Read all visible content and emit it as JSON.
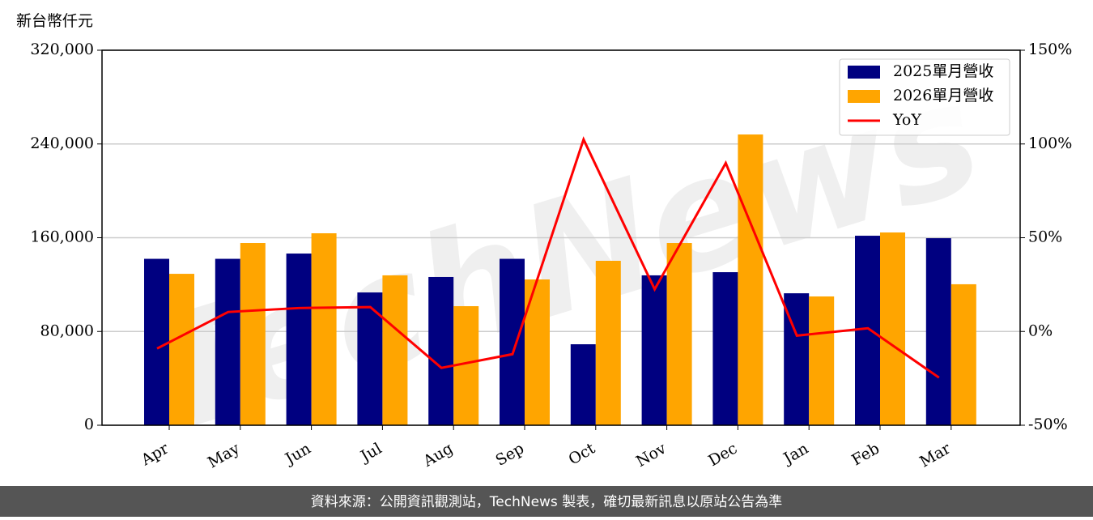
{
  "chart_data": {
    "type": "bar_line",
    "unit_label": "新台幣仟元",
    "watermark": "TechNews",
    "footer": "資料來源：公開資訊觀測站，TechNews 製表，確切最新訊息以原站公告為準",
    "categories": [
      "Apr",
      "May",
      "Jun",
      "Jul",
      "Aug",
      "Sep",
      "Oct",
      "Nov",
      "Dec",
      "Jan",
      "Feb",
      "Mar"
    ],
    "series": [
      {
        "name": "2025單月營收",
        "color": "#000080",
        "type": "bar",
        "values": [
          142000,
          142000,
          146500,
          113300,
          126500,
          142000,
          69100,
          127900,
          130600,
          112600,
          161700,
          159600
        ]
      },
      {
        "name": "2026單月營收",
        "color": "#ffa500",
        "type": "bar",
        "values": [
          129200,
          155500,
          163800,
          127900,
          101600,
          124400,
          140300,
          155500,
          248100,
          109900,
          164500,
          120300
        ]
      },
      {
        "name": "YoY",
        "color": "#ff0000",
        "type": "line",
        "axis": "y2",
        "values": [
          -9.1,
          10.4,
          12.5,
          13.0,
          -19.4,
          -12.1,
          102.4,
          22.5,
          89.8,
          -2.2,
          1.7,
          -24.6
        ]
      }
    ],
    "ylim": [
      0,
      320000
    ],
    "yticks": [
      0,
      {
        "value": 80000,
        "label": "80,000"
      },
      {
        "value": 160000,
        "label": "160,000"
      },
      {
        "value": 240000,
        "label": "240,000"
      },
      {
        "value": 320000,
        "label": "320,000"
      }
    ],
    "y2lim": [
      -50,
      150
    ],
    "y2ticks": [
      {
        "value": -50,
        "label": "-50%"
      },
      {
        "value": 0,
        "label": "0%"
      },
      {
        "value": 50,
        "label": "50%"
      },
      {
        "value": 100,
        "label": "100%"
      },
      {
        "value": 150,
        "label": "150%"
      }
    ],
    "grid": true,
    "legend": "upper right"
  }
}
